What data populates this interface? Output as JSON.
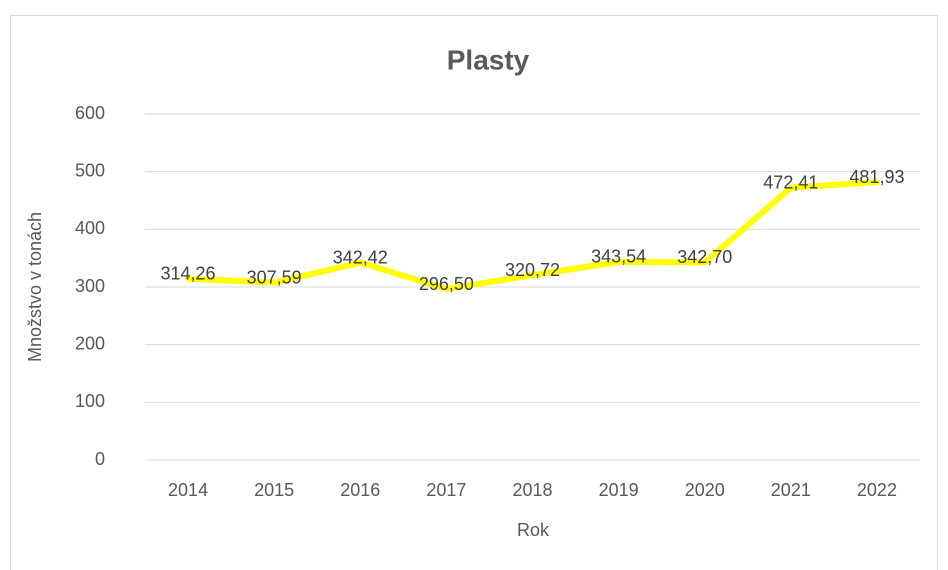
{
  "chart_data": {
    "type": "line",
    "title": "Plasty",
    "x_label": "Rok",
    "y_label": "Množstvo v tonách",
    "categories": [
      "2014",
      "2015",
      "2016",
      "2017",
      "2018",
      "2019",
      "2020",
      "2021",
      "2022"
    ],
    "series": [
      {
        "name": "Plasty",
        "color": "#ffff00",
        "values": [
          314.26,
          307.59,
          342.42,
          296.5,
          320.72,
          343.54,
          342.7,
          472.41,
          481.93
        ],
        "value_labels": [
          "314,26",
          "307,59",
          "342,42",
          "296,50",
          "320,72",
          "343,54",
          "342,70",
          "472,41",
          "481,93"
        ]
      }
    ],
    "ylim": [
      0,
      600
    ],
    "yticks": [
      0,
      100,
      200,
      300,
      400,
      500,
      600
    ],
    "grid": true
  }
}
